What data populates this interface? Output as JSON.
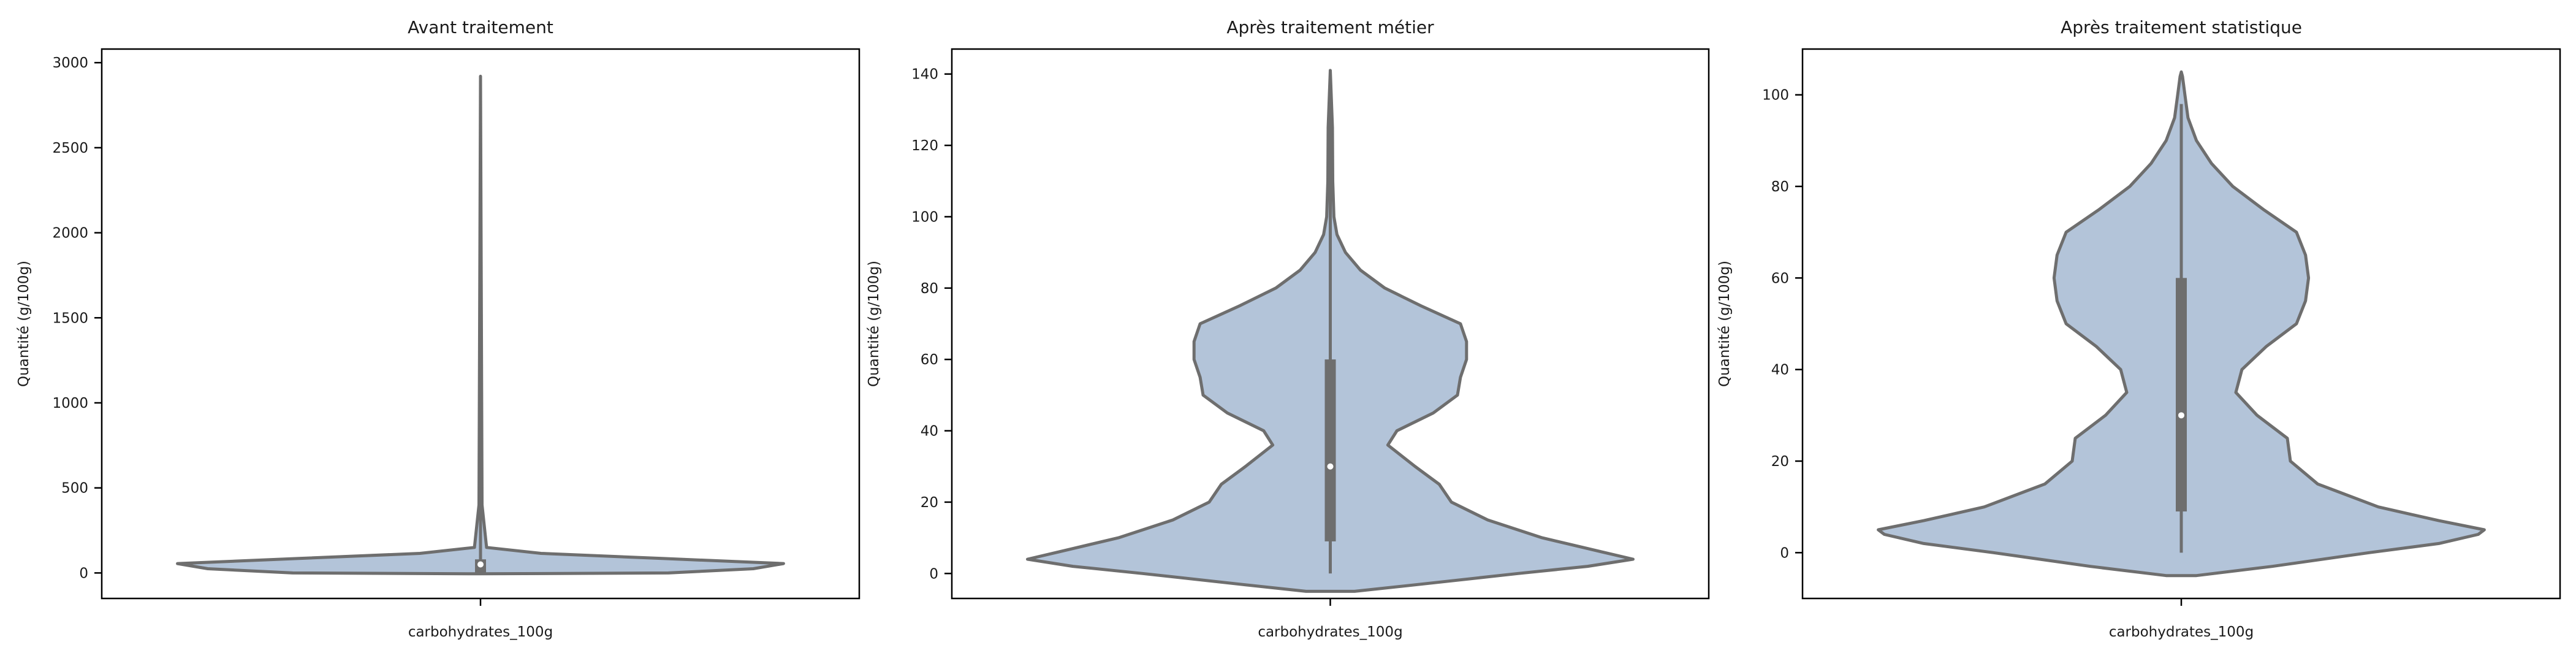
{
  "colors": {
    "violin_fill": "#b3c4d9",
    "violin_edge": "#6e6e6e",
    "box": "#6e6e6e",
    "median_dot": "#ffffff",
    "axes": "#000000"
  },
  "chart_data": [
    {
      "type": "violin",
      "title": "Avant traitement",
      "xlabel": "carbohydrates_100g",
      "ylabel": "Quantité (g/100g)",
      "ylim": [
        -150,
        3080
      ],
      "yticks": [
        0,
        500,
        1000,
        1500,
        2000,
        2500,
        3000
      ],
      "box": {
        "q1": 0,
        "median": 50,
        "q3": 80,
        "whisker_low": 0,
        "whisker_high": 2920
      },
      "density": [
        {
          "y": -5,
          "w": 0.0
        },
        {
          "y": 0,
          "w": 0.62
        },
        {
          "y": 25,
          "w": 0.9
        },
        {
          "y": 55,
          "w": 1.0
        },
        {
          "y": 85,
          "w": 0.6
        },
        {
          "y": 115,
          "w": 0.2
        },
        {
          "y": 150,
          "w": 0.02
        },
        {
          "y": 400,
          "w": 0.005
        },
        {
          "y": 2920,
          "w": 0.0
        }
      ]
    },
    {
      "type": "violin",
      "title": "Après traitement métier",
      "xlabel": "carbohydrates_100g",
      "ylabel": "Quantité (g/100g)",
      "ylim": [
        -7,
        147
      ],
      "yticks": [
        0,
        20,
        40,
        60,
        80,
        100,
        120,
        140
      ],
      "box": {
        "q1": 9,
        "median": 30,
        "q3": 60,
        "whisker_low": 0,
        "whisker_high": 141
      },
      "density": [
        {
          "y": -5,
          "w": 0.08
        },
        {
          "y": -3,
          "w": 0.3
        },
        {
          "y": 0,
          "w": 0.62
        },
        {
          "y": 2,
          "w": 0.85
        },
        {
          "y": 4,
          "w": 1.0
        },
        {
          "y": 6,
          "w": 0.9
        },
        {
          "y": 10,
          "w": 0.7
        },
        {
          "y": 15,
          "w": 0.52
        },
        {
          "y": 20,
          "w": 0.4
        },
        {
          "y": 25,
          "w": 0.36
        },
        {
          "y": 30,
          "w": 0.28
        },
        {
          "y": 36,
          "w": 0.19
        },
        {
          "y": 40,
          "w": 0.22
        },
        {
          "y": 45,
          "w": 0.34
        },
        {
          "y": 50,
          "w": 0.42
        },
        {
          "y": 55,
          "w": 0.43
        },
        {
          "y": 60,
          "w": 0.45
        },
        {
          "y": 65,
          "w": 0.45
        },
        {
          "y": 70,
          "w": 0.43
        },
        {
          "y": 75,
          "w": 0.3
        },
        {
          "y": 80,
          "w": 0.18
        },
        {
          "y": 85,
          "w": 0.1
        },
        {
          "y": 90,
          "w": 0.05
        },
        {
          "y": 95,
          "w": 0.022
        },
        {
          "y": 100,
          "w": 0.012
        },
        {
          "y": 110,
          "w": 0.008
        },
        {
          "y": 125,
          "w": 0.007
        },
        {
          "y": 141,
          "w": 0.0
        }
      ]
    },
    {
      "type": "violin",
      "title": "Après traitement statistique",
      "xlabel": "carbohydrates_100g",
      "ylabel": "Quantité (g/100g)",
      "ylim": [
        -10,
        110
      ],
      "yticks": [
        0,
        20,
        40,
        60,
        80,
        100
      ],
      "box": {
        "q1": 9,
        "median": 30,
        "q3": 60,
        "whisker_low": 0,
        "whisker_high": 98
      },
      "density": [
        {
          "y": -5,
          "w": 0.05
        },
        {
          "y": -3,
          "w": 0.3
        },
        {
          "y": 0,
          "w": 0.62
        },
        {
          "y": 2,
          "w": 0.85
        },
        {
          "y": 4,
          "w": 0.98
        },
        {
          "y": 5,
          "w": 1.0
        },
        {
          "y": 7,
          "w": 0.85
        },
        {
          "y": 10,
          "w": 0.65
        },
        {
          "y": 15,
          "w": 0.45
        },
        {
          "y": 20,
          "w": 0.36
        },
        {
          "y": 25,
          "w": 0.35
        },
        {
          "y": 30,
          "w": 0.25
        },
        {
          "y": 35,
          "w": 0.18
        },
        {
          "y": 40,
          "w": 0.2
        },
        {
          "y": 45,
          "w": 0.28
        },
        {
          "y": 50,
          "w": 0.38
        },
        {
          "y": 55,
          "w": 0.41
        },
        {
          "y": 60,
          "w": 0.42
        },
        {
          "y": 65,
          "w": 0.41
        },
        {
          "y": 70,
          "w": 0.38
        },
        {
          "y": 75,
          "w": 0.27
        },
        {
          "y": 80,
          "w": 0.17
        },
        {
          "y": 85,
          "w": 0.1
        },
        {
          "y": 90,
          "w": 0.05
        },
        {
          "y": 95,
          "w": 0.022
        },
        {
          "y": 100,
          "w": 0.012
        },
        {
          "y": 104,
          "w": 0.004
        },
        {
          "y": 105,
          "w": 0.0
        }
      ]
    }
  ]
}
